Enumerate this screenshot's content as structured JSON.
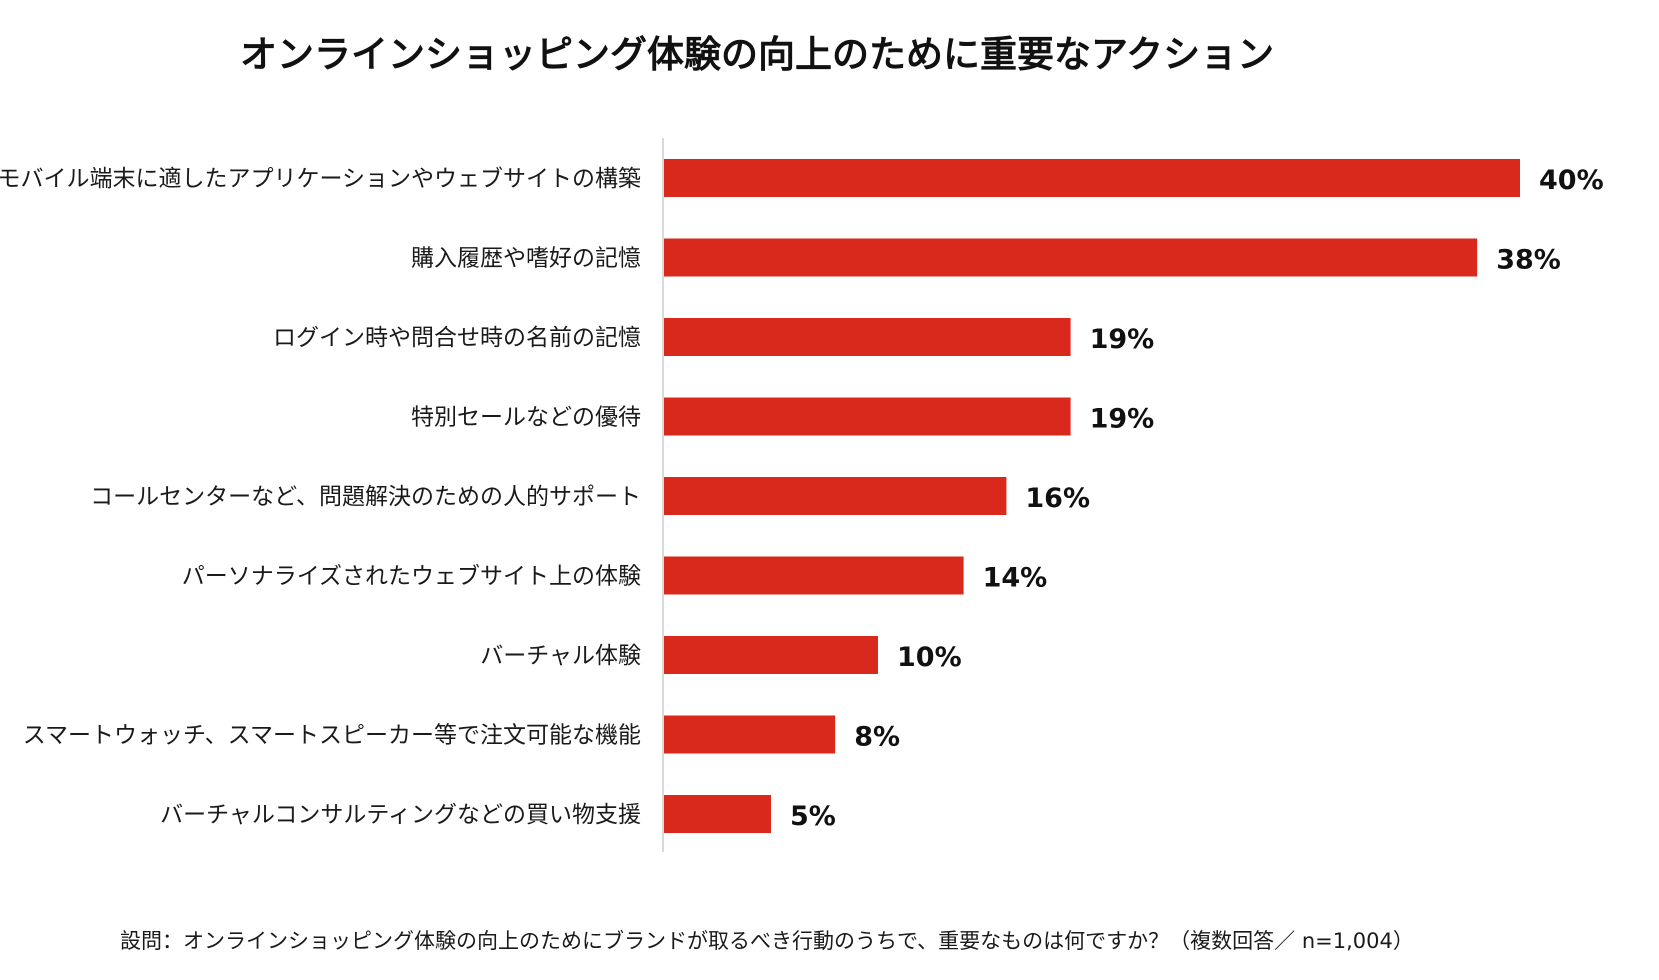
{
  "chart_data": {
    "type": "bar",
    "orientation": "horizontal",
    "title": "オンラインショッピング体験の向上のために重要なアクション",
    "categories": [
      "モバイル端末に適したアプリケーションやウェブサイトの構築",
      "購入履歴や嗜好の記憶",
      "ログイン時や問合せ時の名前の記憶",
      "特別セールなどの優待",
      "コールセンターなど、問題解決のための人的サポート",
      "パーソナライズされたウェブサイト上の体験",
      "バーチャル体験",
      "スマートウォッチ、スマートスピーカー等で注文可能な機能",
      "バーチャルコンサルティングなどの買い物支援"
    ],
    "values": [
      40,
      38,
      19,
      19,
      16,
      14,
      10,
      8,
      5
    ],
    "value_labels": [
      "40%",
      "38%",
      "19%",
      "19%",
      "16%",
      "14%",
      "10%",
      "8%",
      "5%"
    ],
    "xlim": [
      0,
      40
    ],
    "grid": false,
    "bar_color": "#d9291c",
    "axis_color": "#d9d9d9"
  },
  "footnote": "設問：オンラインショッピング体験の向上のためにブランドが取るべき行動のうちで、重要なものは何ですか？（複数回答／ n=1,004）"
}
